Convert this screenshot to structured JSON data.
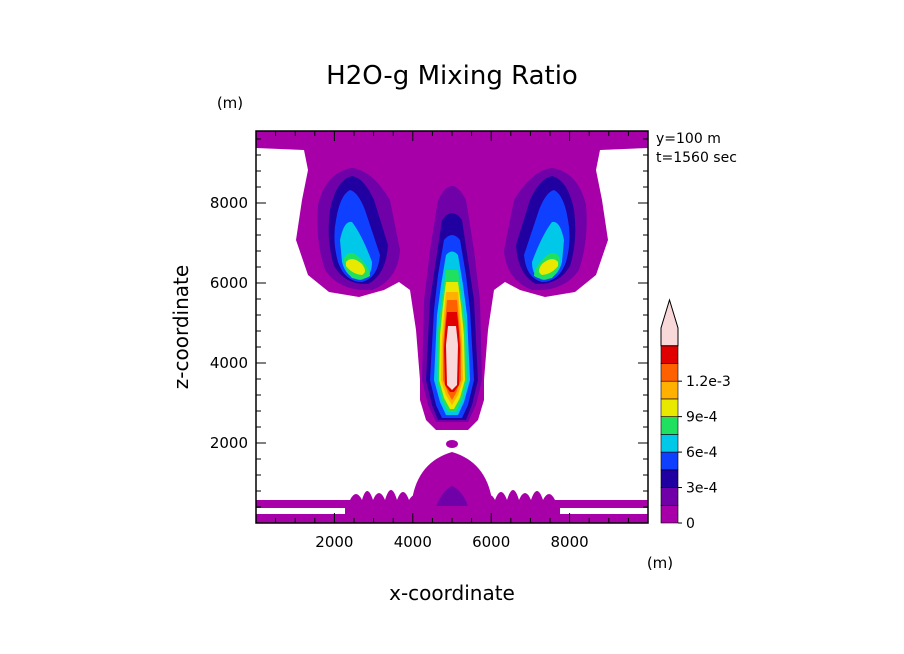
{
  "chart_data": {
    "type": "heatmap",
    "title": "H2O-g Mixing Ratio",
    "xlabel": "x-coordinate",
    "ylabel": "z-coordinate",
    "x_unit": "(m)",
    "y_unit": "(m)",
    "annotations": [
      "y=100 m",
      "t=1560 sec"
    ],
    "xlim": [
      0,
      10000
    ],
    "ylim": [
      0,
      9800
    ],
    "x_ticks": [
      2000,
      4000,
      6000,
      8000
    ],
    "x_tick_labels": [
      "2000",
      "4000",
      "6000",
      "8000"
    ],
    "y_ticks": [
      2000,
      4000,
      6000,
      8000
    ],
    "y_tick_labels": [
      "2000",
      "4000",
      "6000",
      "8000"
    ],
    "colorbar": {
      "levels": [
        0,
        0.00015,
        0.0003,
        0.00045,
        0.0006,
        0.00075,
        0.0009,
        0.00105,
        0.0012,
        0.00135
      ],
      "colors": [
        "#a800a8",
        "#7000a8",
        "#2000a0",
        "#1040ff",
        "#00c8e8",
        "#20e060",
        "#e8e800",
        "#ffb000",
        "#ff6000",
        "#e00000",
        "#f8d8d8"
      ],
      "tick_labels": [
        "0",
        "3e-4",
        "6e-4",
        "9e-4",
        "1.2e-3"
      ],
      "tick_values": [
        0,
        0.0003,
        0.0006,
        0.0009,
        0.0012
      ],
      "extend": "max"
    },
    "grid": false,
    "features": [
      {
        "name": "central-column",
        "x_center": 5000,
        "z_range": [
          2600,
          8600
        ],
        "max_value_range": [
          0.0012,
          0.00135
        ]
      },
      {
        "name": "left-anvil-lobe",
        "x_center": 2800,
        "z_range": [
          5900,
          9000
        ],
        "max_value_range": [
          0.00075,
          0.0009
        ]
      },
      {
        "name": "right-anvil-lobe",
        "x_center": 7200,
        "z_range": [
          5900,
          9000
        ],
        "max_value_range": [
          0.00075,
          0.0009
        ]
      },
      {
        "name": "upper-cloud-layer",
        "x_range": [
          1500,
          8500
        ],
        "z_range": [
          8500,
          9800
        ],
        "max_value_range": [
          0,
          0.00015
        ]
      },
      {
        "name": "surface-layer",
        "x_range": [
          0,
          10000
        ],
        "z_range": [
          0,
          600
        ],
        "max_value_range": [
          0,
          0.00015
        ]
      },
      {
        "name": "surface-bump",
        "x_center": 5000,
        "z_range": [
          0,
          1800
        ],
        "max_value_range": [
          0.00015,
          0.0003
        ]
      },
      {
        "name": "blob",
        "x_center": 5000,
        "z_range": [
          1950,
          2150
        ],
        "max_value_range": [
          0,
          0.00015
        ]
      }
    ]
  }
}
